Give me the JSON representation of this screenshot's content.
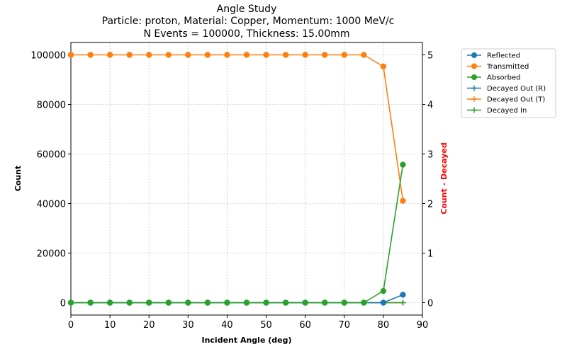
{
  "chart_data": {
    "type": "line",
    "title": [
      "Angle Study",
      "Particle: proton, Material: Copper, Momentum: 1000 MeV/c",
      "N Events = 100000, Thickness: 15.00mm"
    ],
    "xlabel": "Incident Angle (deg)",
    "ylabel": "Count",
    "y2label": "Count - Decayed",
    "xlim": [
      0,
      90
    ],
    "ylim": [
      -5000,
      105000
    ],
    "y2lim": [
      -0.25,
      5.25
    ],
    "xticks": [
      0,
      10,
      20,
      30,
      40,
      50,
      60,
      70,
      80,
      90
    ],
    "yticks": [
      0,
      20000,
      40000,
      60000,
      80000,
      100000
    ],
    "y2ticks": [
      0,
      1,
      2,
      3,
      4,
      5
    ],
    "grid": true,
    "legend_position": "outside-top-right",
    "x": [
      0,
      5,
      10,
      15,
      20,
      25,
      30,
      35,
      40,
      45,
      50,
      55,
      60,
      65,
      70,
      75,
      80,
      85
    ],
    "series": [
      {
        "name": "Reflected",
        "axis": "left",
        "marker": "circle",
        "color": "#1f77b4",
        "values": [
          0,
          0,
          0,
          0,
          0,
          0,
          0,
          0,
          0,
          0,
          0,
          0,
          0,
          0,
          0,
          0,
          0,
          3200
        ]
      },
      {
        "name": "Transmitted",
        "axis": "left",
        "marker": "circle",
        "color": "#ff7f0e",
        "values": [
          100000,
          100000,
          100000,
          100000,
          100000,
          100000,
          100000,
          100000,
          100000,
          100000,
          100000,
          100000,
          100000,
          100000,
          100000,
          100000,
          95300,
          41100
        ]
      },
      {
        "name": "Absorbed",
        "axis": "left",
        "marker": "circle",
        "color": "#2ca02c",
        "values": [
          0,
          0,
          0,
          0,
          0,
          0,
          0,
          0,
          0,
          0,
          0,
          0,
          0,
          0,
          0,
          0,
          4700,
          55700
        ]
      },
      {
        "name": "Decayed Out (R)",
        "axis": "right",
        "marker": "plus",
        "color": "#1f77b4",
        "values": [
          0,
          0,
          0,
          0,
          0,
          0,
          0,
          0,
          0,
          0,
          0,
          0,
          0,
          0,
          0,
          0,
          0,
          0
        ]
      },
      {
        "name": "Decayed Out (T)",
        "axis": "right",
        "marker": "plus",
        "color": "#ff7f0e",
        "values": [
          0,
          0,
          0,
          0,
          0,
          0,
          0,
          0,
          0,
          0,
          0,
          0,
          0,
          0,
          0,
          0,
          0,
          0
        ]
      },
      {
        "name": "Decayed In",
        "axis": "right",
        "marker": "plus",
        "color": "#2ca02c",
        "values": [
          0,
          0,
          0,
          0,
          0,
          0,
          0,
          0,
          0,
          0,
          0,
          0,
          0,
          0,
          0,
          0,
          0,
          0
        ]
      }
    ],
    "colors": {
      "left_axis_label": "#000000",
      "right_axis_label": "#ff0000",
      "grid": "#b0b0b0"
    }
  }
}
